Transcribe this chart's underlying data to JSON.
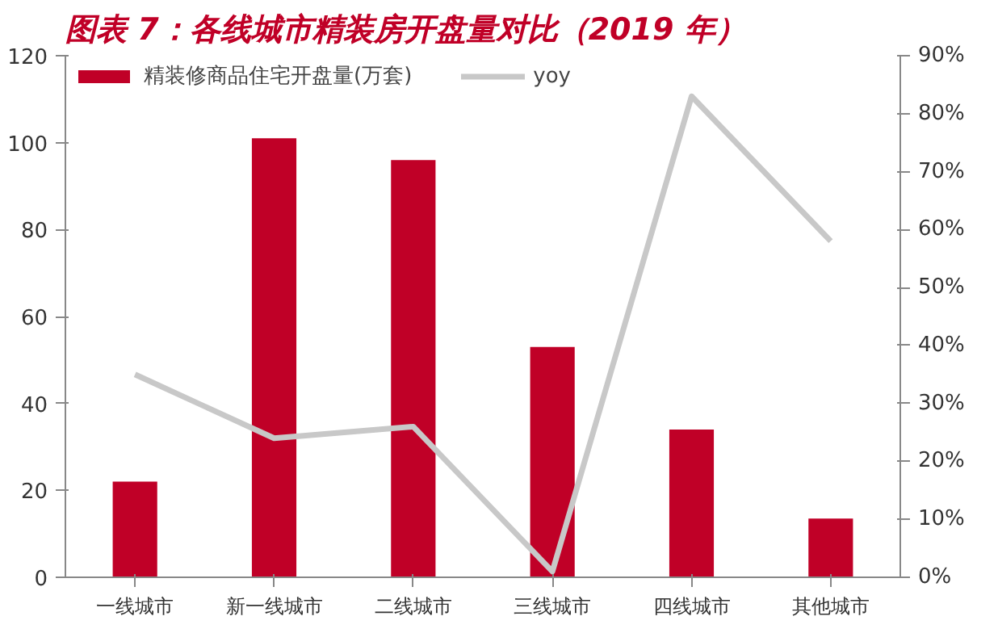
{
  "chart_data": {
    "type": "bar",
    "title": "图表 7：各线城市精装房开盘量对比（2019 年）",
    "categories": [
      "一线城市",
      "新一线城市",
      "二线城市",
      "三线城市",
      "四线城市",
      "其他城市"
    ],
    "series": [
      {
        "name": "精装修商品住宅开盘量(万套)",
        "color": "#c00027",
        "values": [
          22,
          101,
          96,
          53,
          34,
          13.5
        ]
      },
      {
        "name": "yoy",
        "type": "line",
        "axis": "y2",
        "color": "#c8c8c8",
        "values": [
          35,
          24,
          26,
          1,
          83,
          58
        ]
      }
    ],
    "ylim": [
      0,
      120
    ],
    "yticks": [
      0,
      20,
      40,
      60,
      80,
      100,
      120
    ],
    "y2lim": [
      0,
      90
    ],
    "y2ticks": [
      {
        "value": 0,
        "label": "0%"
      },
      {
        "value": 10,
        "label": "10%"
      },
      {
        "value": 20,
        "label": "20%"
      },
      {
        "value": 30,
        "label": "30%"
      },
      {
        "value": 40,
        "label": "40%"
      },
      {
        "value": 50,
        "label": "50%"
      },
      {
        "value": 60,
        "label": "60%"
      },
      {
        "value": 70,
        "label": "70%"
      },
      {
        "value": 80,
        "label": "80%"
      },
      {
        "value": 90,
        "label": "90%"
      }
    ],
    "legend": "top",
    "grid": false,
    "marker": "none",
    "line_style": "solid"
  }
}
